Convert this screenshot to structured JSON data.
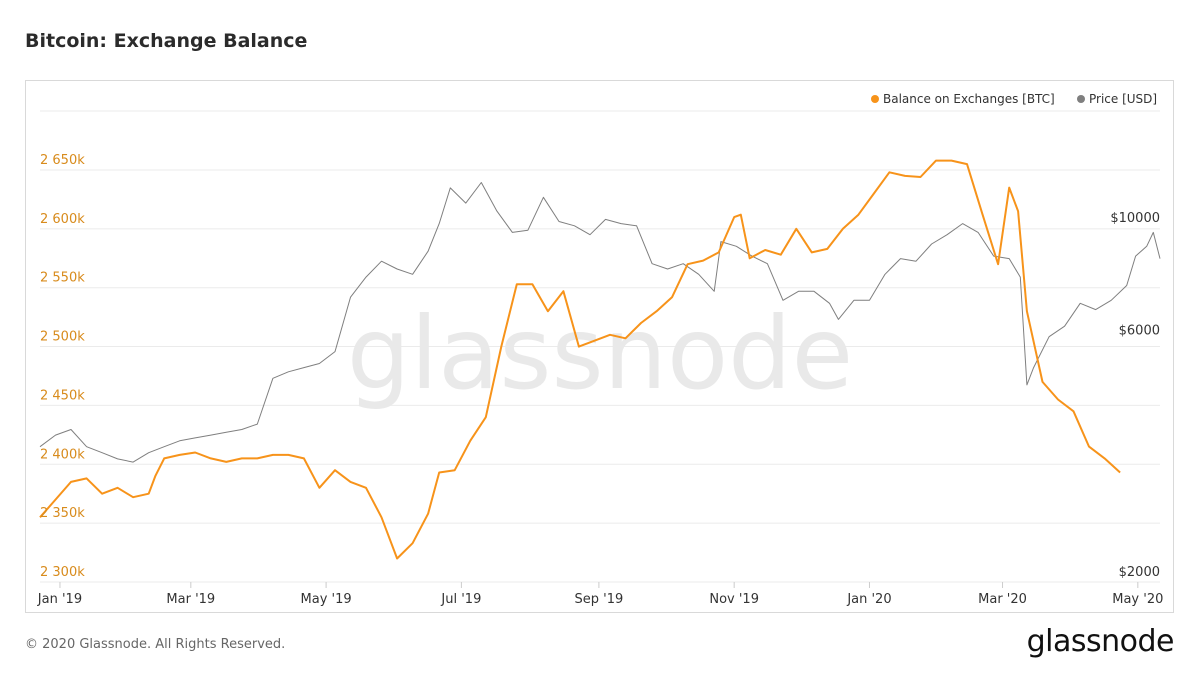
{
  "title": "Bitcoin: Exchange Balance",
  "footer": "© 2020 Glassnode. All Rights Reserved.",
  "brand": "glassnode",
  "watermark": "glassnode",
  "colors": {
    "balance": "#f7931a",
    "price": "#7f7f7f",
    "grid": "#ebebeb",
    "left_axis": "#d88b1c"
  },
  "chart_data": {
    "type": "line",
    "title": "Bitcoin: Exchange Balance",
    "legend_position": "top-right",
    "grid": true,
    "x_ticks": [
      "Jan '19",
      "Mar '19",
      "May '19",
      "Jul '19",
      "Sep '19",
      "Nov '19",
      "Jan '20",
      "Mar '20",
      "May '20"
    ],
    "y_left": {
      "ticks": [
        "2 300k",
        "2 350k",
        "2 400k",
        "2 450k",
        "2 500k",
        "2 550k",
        "2 600k",
        "2 650k"
      ],
      "range": [
        2300000,
        2700000
      ]
    },
    "y_right": {
      "ticks": [
        "$2000",
        "$6000",
        "$10000"
      ],
      "scale": "log"
    },
    "series": [
      {
        "name": "Balance on Exchanges [BTC]",
        "axis": "left",
        "points": [
          [
            "2018-12-23",
            2355000
          ],
          [
            "2018-12-30",
            2370000
          ],
          [
            "2019-01-06",
            2385000
          ],
          [
            "2019-01-13",
            2388000
          ],
          [
            "2019-01-20",
            2375000
          ],
          [
            "2019-01-27",
            2380000
          ],
          [
            "2019-02-03",
            2372000
          ],
          [
            "2019-02-10",
            2375000
          ],
          [
            "2019-02-13",
            2390000
          ],
          [
            "2019-02-17",
            2405000
          ],
          [
            "2019-02-24",
            2408000
          ],
          [
            "2019-03-03",
            2410000
          ],
          [
            "2019-03-10",
            2405000
          ],
          [
            "2019-03-17",
            2402000
          ],
          [
            "2019-03-24",
            2405000
          ],
          [
            "2019-03-31",
            2405000
          ],
          [
            "2019-04-07",
            2408000
          ],
          [
            "2019-04-14",
            2408000
          ],
          [
            "2019-04-21",
            2405000
          ],
          [
            "2019-04-28",
            2380000
          ],
          [
            "2019-05-05",
            2395000
          ],
          [
            "2019-05-12",
            2385000
          ],
          [
            "2019-05-19",
            2380000
          ],
          [
            "2019-05-26",
            2355000
          ],
          [
            "2019-06-02",
            2320000
          ],
          [
            "2019-06-09",
            2333000
          ],
          [
            "2019-06-16",
            2358000
          ],
          [
            "2019-06-21",
            2393000
          ],
          [
            "2019-06-28",
            2395000
          ],
          [
            "2019-07-05",
            2420000
          ],
          [
            "2019-07-12",
            2440000
          ],
          [
            "2019-07-19",
            2500000
          ],
          [
            "2019-07-26",
            2553000
          ],
          [
            "2019-08-02",
            2553000
          ],
          [
            "2019-08-09",
            2530000
          ],
          [
            "2019-08-16",
            2547000
          ],
          [
            "2019-08-23",
            2500000
          ],
          [
            "2019-08-30",
            2505000
          ],
          [
            "2019-09-06",
            2510000
          ],
          [
            "2019-09-13",
            2507000
          ],
          [
            "2019-09-20",
            2520000
          ],
          [
            "2019-09-27",
            2530000
          ],
          [
            "2019-10-04",
            2542000
          ],
          [
            "2019-10-11",
            2570000
          ],
          [
            "2019-10-18",
            2573000
          ],
          [
            "2019-10-25",
            2580000
          ],
          [
            "2019-11-01",
            2610000
          ],
          [
            "2019-11-04",
            2612000
          ],
          [
            "2019-11-08",
            2575000
          ],
          [
            "2019-11-15",
            2582000
          ],
          [
            "2019-11-22",
            2578000
          ],
          [
            "2019-11-29",
            2600000
          ],
          [
            "2019-12-06",
            2580000
          ],
          [
            "2019-12-13",
            2583000
          ],
          [
            "2019-12-20",
            2600000
          ],
          [
            "2019-12-27",
            2612000
          ],
          [
            "2020-01-03",
            2630000
          ],
          [
            "2020-01-10",
            2648000
          ],
          [
            "2020-01-17",
            2645000
          ],
          [
            "2020-01-24",
            2644000
          ],
          [
            "2020-01-31",
            2658000
          ],
          [
            "2020-02-07",
            2658000
          ],
          [
            "2020-02-14",
            2655000
          ],
          [
            "2020-02-21",
            2612000
          ],
          [
            "2020-02-28",
            2570000
          ],
          [
            "2020-03-04",
            2635000
          ],
          [
            "2020-03-08",
            2615000
          ],
          [
            "2020-03-12",
            2530000
          ],
          [
            "2020-03-19",
            2470000
          ],
          [
            "2020-03-26",
            2455000
          ],
          [
            "2020-04-02",
            2445000
          ],
          [
            "2020-04-09",
            2415000
          ],
          [
            "2020-04-16",
            2405000
          ],
          [
            "2020-04-23",
            2393000
          ]
        ]
      },
      {
        "name": "Price [USD]",
        "axis": "right",
        "points": [
          [
            "2018-12-23",
            3700
          ],
          [
            "2018-12-30",
            3900
          ],
          [
            "2019-01-06",
            4000
          ],
          [
            "2019-01-13",
            3700
          ],
          [
            "2019-01-20",
            3600
          ],
          [
            "2019-01-27",
            3500
          ],
          [
            "2019-02-03",
            3450
          ],
          [
            "2019-02-10",
            3600
          ],
          [
            "2019-02-17",
            3700
          ],
          [
            "2019-02-24",
            3800
          ],
          [
            "2019-03-03",
            3850
          ],
          [
            "2019-03-10",
            3900
          ],
          [
            "2019-03-17",
            3950
          ],
          [
            "2019-03-24",
            4000
          ],
          [
            "2019-03-31",
            4100
          ],
          [
            "2019-04-07",
            5050
          ],
          [
            "2019-04-14",
            5200
          ],
          [
            "2019-04-21",
            5300
          ],
          [
            "2019-04-28",
            5400
          ],
          [
            "2019-05-05",
            5700
          ],
          [
            "2019-05-12",
            7300
          ],
          [
            "2019-05-19",
            8000
          ],
          [
            "2019-05-26",
            8600
          ],
          [
            "2019-06-02",
            8300
          ],
          [
            "2019-06-09",
            8100
          ],
          [
            "2019-06-16",
            9000
          ],
          [
            "2019-06-21",
            10200
          ],
          [
            "2019-06-26",
            12000
          ],
          [
            "2019-07-03",
            11200
          ],
          [
            "2019-07-10",
            12300
          ],
          [
            "2019-07-17",
            10800
          ],
          [
            "2019-07-24",
            9800
          ],
          [
            "2019-07-31",
            9900
          ],
          [
            "2019-08-07",
            11500
          ],
          [
            "2019-08-14",
            10300
          ],
          [
            "2019-08-21",
            10100
          ],
          [
            "2019-08-28",
            9700
          ],
          [
            "2019-09-04",
            10400
          ],
          [
            "2019-09-11",
            10200
          ],
          [
            "2019-09-18",
            10100
          ],
          [
            "2019-09-25",
            8500
          ],
          [
            "2019-10-02",
            8300
          ],
          [
            "2019-10-09",
            8500
          ],
          [
            "2019-10-16",
            8100
          ],
          [
            "2019-10-23",
            7500
          ],
          [
            "2019-10-26",
            9400
          ],
          [
            "2019-11-02",
            9200
          ],
          [
            "2019-11-09",
            8800
          ],
          [
            "2019-11-16",
            8500
          ],
          [
            "2019-11-23",
            7200
          ],
          [
            "2019-11-30",
            7500
          ],
          [
            "2019-12-07",
            7500
          ],
          [
            "2019-12-14",
            7100
          ],
          [
            "2019-12-18",
            6600
          ],
          [
            "2019-12-25",
            7200
          ],
          [
            "2020-01-01",
            7200
          ],
          [
            "2020-01-08",
            8100
          ],
          [
            "2020-01-15",
            8700
          ],
          [
            "2020-01-22",
            8600
          ],
          [
            "2020-01-29",
            9300
          ],
          [
            "2020-02-05",
            9700
          ],
          [
            "2020-02-12",
            10200
          ],
          [
            "2020-02-19",
            9800
          ],
          [
            "2020-02-26",
            8800
          ],
          [
            "2020-03-04",
            8700
          ],
          [
            "2020-03-09",
            8000
          ],
          [
            "2020-03-12",
            4900
          ],
          [
            "2020-03-15",
            5300
          ],
          [
            "2020-03-22",
            6100
          ],
          [
            "2020-03-29",
            6400
          ],
          [
            "2020-04-05",
            7100
          ],
          [
            "2020-04-12",
            6900
          ],
          [
            "2020-04-19",
            7200
          ],
          [
            "2020-04-26",
            7700
          ],
          [
            "2020-04-30",
            8800
          ],
          [
            "2020-05-05",
            9200
          ],
          [
            "2020-05-08",
            9800
          ],
          [
            "2020-05-11",
            8700
          ]
        ]
      }
    ]
  }
}
